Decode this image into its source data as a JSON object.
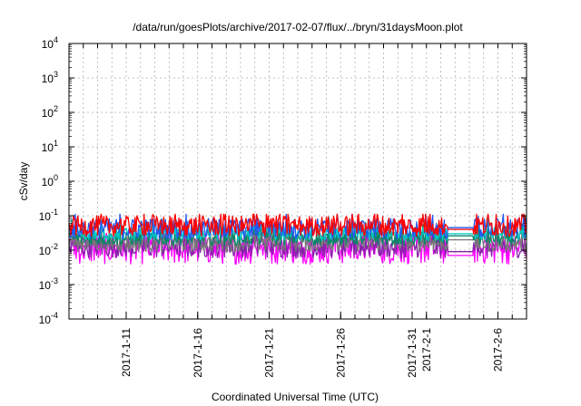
{
  "chart_data": {
    "type": "line",
    "title": "/data/run/goesPlots/archive/2017-02-07/flux/../bryn/31daysMoon.plot",
    "xlabel": "Coordinated Universal Time (UTC)",
    "ylabel": "cSv/day",
    "yscale": "log",
    "ylim": [
      0.0001,
      10000
    ],
    "xlim": [
      "2017-01-07",
      "2017-02-08"
    ],
    "grid": true,
    "yticks": [
      {
        "base": "10",
        "exp": "-4"
      },
      {
        "base": "10",
        "exp": "-3"
      },
      {
        "base": "10",
        "exp": "-2"
      },
      {
        "base": "10",
        "exp": "-1"
      },
      {
        "base": "10",
        "exp": "0"
      },
      {
        "base": "10",
        "exp": "1"
      },
      {
        "base": "10",
        "exp": "2"
      },
      {
        "base": "10",
        "exp": "3"
      },
      {
        "base": "10",
        "exp": "4"
      }
    ],
    "xticks": [
      {
        "date": "2017-01-11",
        "label": "2017-1-11"
      },
      {
        "date": "2017-01-16",
        "label": "2017-1-16"
      },
      {
        "date": "2017-01-21",
        "label": "2017-1-21"
      },
      {
        "date": "2017-01-26",
        "label": "2017-1-26"
      },
      {
        "date": "2017-01-31",
        "label": "2017-1-31"
      },
      {
        "date": "2017-02-01",
        "label": "2017-2-1"
      },
      {
        "date": "2017-02-06",
        "label": "2017-2-6"
      }
    ],
    "series": [
      {
        "color": "#ff0000",
        "typical": 0.05,
        "spread": 0.3,
        "plateau": 0.04
      },
      {
        "color": "#2255ee",
        "typical": 0.042,
        "spread": 0.3,
        "plateau": 0.045
      },
      {
        "color": "#00c8c8",
        "typical": 0.03,
        "spread": 0.2,
        "plateau": 0.03
      },
      {
        "color": "#008866",
        "typical": 0.022,
        "spread": 0.2,
        "plateau": 0.026
      },
      {
        "color": "#777777",
        "typical": 0.016,
        "spread": 0.25,
        "plateau": 0.02
      },
      {
        "color": "#8822aa",
        "typical": 0.012,
        "spread": 0.3,
        "plateau": 0.009
      },
      {
        "color": "#ff00ff",
        "typical": 0.011,
        "spread": 0.45,
        "plateau": 0.007
      }
    ],
    "gap": [
      "2017-02-02T12:00",
      "2017-02-04T06:00"
    ]
  }
}
